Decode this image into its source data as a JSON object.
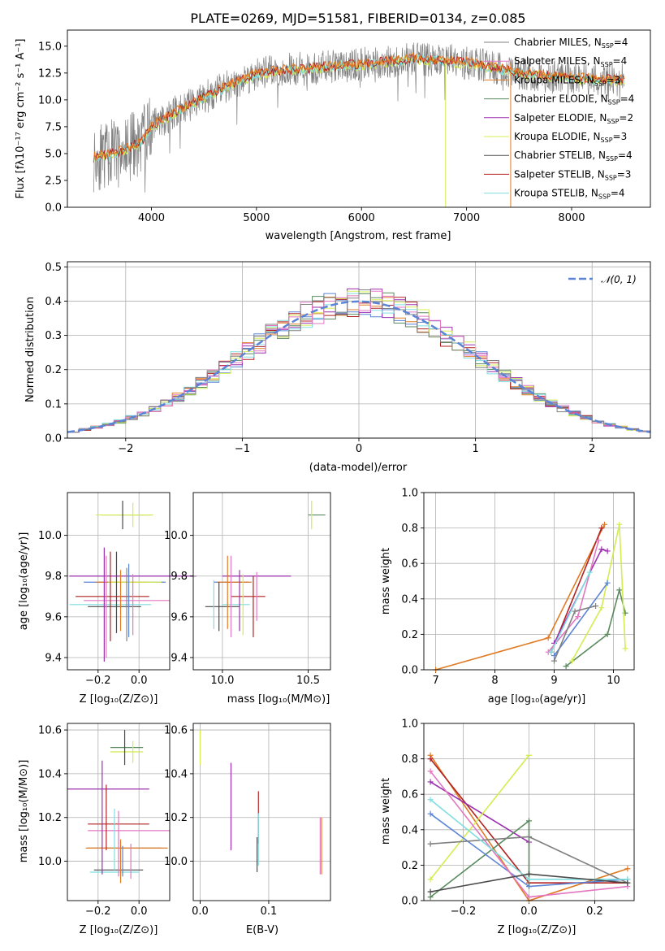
{
  "colors": {
    "Chabrier MILES": "#808080",
    "Salpeter MILES": "#e377c2",
    "Kroupa MILES": "#e07b24",
    "Chabrier ELODIE": "#5a8a5e",
    "Salpeter ELODIE": "#9b2fae",
    "Kroupa ELODIE": "#d4ec52",
    "Chabrier STELIB": "#4a4a4a",
    "Salpeter STELIB": "#b22222",
    "Kroupa STELIB": "#7fdde0",
    "blue": "#5b84d6"
  },
  "chart_data": [
    {
      "id": "spectrum",
      "type": "line",
      "title": "PLATE=0269, MJD=51581, FIBERID=0134, z=0.085",
      "xlabel": "wavelength [Angstrom, rest frame]",
      "ylabel": "Flux [fλ10⁻¹⁷ erg cm⁻² s⁻¹ A⁻¹]",
      "xlim": [
        3200,
        8750
      ],
      "ylim": [
        0,
        16.5
      ],
      "xticks": [
        4000,
        5000,
        6000,
        7000,
        8000
      ],
      "yticks": [
        "0.0",
        "2.5",
        "5.0",
        "7.5",
        "10.0",
        "12.5",
        "15.0"
      ],
      "legend_position": "right",
      "legend": [
        {
          "label": "Chabrier MILES, N",
          "sub": "SSP",
          "tail": "=4",
          "color": "#808080"
        },
        {
          "label": "Salpeter MILES, N",
          "sub": "SSP",
          "tail": "=4",
          "color": "#e377c2"
        },
        {
          "label": "Kroupa MILES, N",
          "sub": "SSP",
          "tail": "=3",
          "color": "#e07b24"
        },
        {
          "label": "Chabrier ELODIE, N",
          "sub": "SSP",
          "tail": "=4",
          "color": "#5a8a5e"
        },
        {
          "label": "Salpeter ELODIE, N",
          "sub": "SSP",
          "tail": "=2",
          "color": "#9b2fae"
        },
        {
          "label": "Kroupa ELODIE, N",
          "sub": "SSP",
          "tail": "=3",
          "color": "#d4ec52"
        },
        {
          "label": "Chabrier STELIB, N",
          "sub": "SSP",
          "tail": "=4",
          "color": "#4a4a4a"
        },
        {
          "label": "Salpeter STELIB, N",
          "sub": "SSP",
          "tail": "=3",
          "color": "#b22222"
        },
        {
          "label": "Kroupa STELIB, N",
          "sub": "SSP",
          "tail": "=4",
          "color": "#7fdde0"
        }
      ],
      "continuum": [
        [
          3450,
          4.6
        ],
        [
          3700,
          5.2
        ],
        [
          3900,
          6.0
        ],
        [
          4000,
          7.5
        ],
        [
          4250,
          9.0
        ],
        [
          4500,
          10.2
        ],
        [
          4750,
          11.4
        ],
        [
          5000,
          12.4
        ],
        [
          5300,
          12.8
        ],
        [
          5600,
          13.0
        ],
        [
          6000,
          13.3
        ],
        [
          6500,
          13.8
        ],
        [
          7000,
          13.5
        ],
        [
          7500,
          12.5
        ],
        [
          8000,
          12.0
        ],
        [
          8500,
          11.8
        ]
      ]
    },
    {
      "id": "residual-hist",
      "type": "line",
      "xlabel": "(data-model)/error",
      "ylabel": "Normed distribution",
      "xlim": [
        -2.5,
        2.5
      ],
      "ylim": [
        0,
        0.515
      ],
      "xticks": [
        "−2",
        "−1",
        "0",
        "1",
        "2"
      ],
      "yticks": [
        "0.0",
        "0.1",
        "0.2",
        "0.3",
        "0.4",
        "0.5"
      ],
      "legend": "𝒩(0, 1)",
      "legend_position": "top-right",
      "bin_width": 0.1
    },
    {
      "id": "age-vs-Z",
      "type": "scatter",
      "xlabel": "Z [log₁₀(Z/Z⊙)]",
      "ylabel": "age  [log₁₀(age/yr)]",
      "xlim": [
        -0.35,
        0.15
      ],
      "ylim": [
        9.34,
        10.21
      ],
      "xticks": [
        "−0.2",
        "0.0"
      ],
      "yticks": [
        "9.4",
        "9.6",
        "9.8",
        "10.0"
      ]
    },
    {
      "id": "age-vs-mass",
      "type": "scatter",
      "xlabel": "mass [log₁₀(M/M⊙)]",
      "xlim": [
        9.83,
        10.63
      ],
      "ylim": [
        9.34,
        10.21
      ],
      "xticks": [
        "10.0",
        "10.5"
      ],
      "yticks": [
        "9.4",
        "9.6",
        "9.8",
        "10.0"
      ]
    },
    {
      "id": "massweight-vs-age",
      "type": "line",
      "xlabel": "age  [log₁₀(age/yr)]",
      "ylabel": "mass weight",
      "xlim": [
        6.8,
        10.35
      ],
      "ylim": [
        0,
        1.0
      ],
      "xticks": [
        "7",
        "8",
        "9",
        "10"
      ],
      "yticks": [
        "0.0",
        "0.2",
        "0.4",
        "0.6",
        "0.8",
        "1.0"
      ]
    },
    {
      "id": "mass-vs-Z",
      "type": "scatter",
      "xlabel": "Z [log₁₀(Z/Z⊙)]",
      "ylabel": "mass [log₁₀(M/M⊙)]",
      "xlim": [
        -0.35,
        0.15
      ],
      "ylim": [
        9.82,
        10.63
      ],
      "xticks": [
        "−0.2",
        "0.0"
      ],
      "yticks": [
        "10.0",
        "10.2",
        "10.4",
        "10.6"
      ]
    },
    {
      "id": "mass-vs-ebv",
      "type": "scatter",
      "xlabel": "E(B-V)",
      "xlim": [
        -0.01,
        0.19
      ],
      "ylim": [
        9.82,
        10.63
      ],
      "xticks": [
        "0.0",
        "0.1"
      ],
      "yticks": [
        "10.0",
        "10.2",
        "10.4",
        "10.6"
      ]
    },
    {
      "id": "massweight-vs-Z",
      "type": "line",
      "xlabel": "Z [log₁₀(Z/Z⊙)]",
      "ylabel": "mass weight",
      "xlim": [
        -0.32,
        0.32
      ],
      "ylim": [
        0,
        1.0
      ],
      "xticks": [
        "−0.2",
        "0.0",
        "0.2"
      ],
      "yticks": [
        "0.0",
        "0.2",
        "0.4",
        "0.6",
        "0.8",
        "1.0"
      ]
    }
  ]
}
